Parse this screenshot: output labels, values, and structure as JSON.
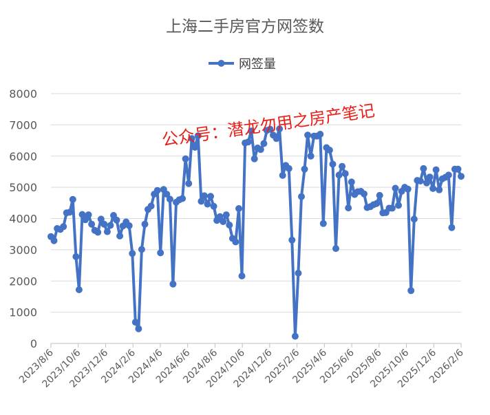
{
  "chart_data": {
    "type": "line",
    "title": "上海二手房官方网签数",
    "watermark": "公众号：潜龙勿用之房产笔记",
    "xlabel": "",
    "ylabel": "",
    "ylim": [
      0,
      8000
    ],
    "y_ticks": [
      0,
      1000,
      2000,
      3000,
      4000,
      5000,
      6000,
      7000,
      8000
    ],
    "x_tick_labels": [
      "2023/8/6",
      "2023/10/6",
      "2023/12/6",
      "2024/2/6",
      "2024/4/6",
      "2024/6/6",
      "2024/8/6",
      "2024/10/6",
      "2024/12/6",
      "2025/2/6",
      "2025/4/6",
      "2025/6/6",
      "2025/8/6",
      "2025/10/6",
      "2025/12/6",
      "2026/2/6"
    ],
    "legend_position": "top",
    "grid": true,
    "series_color": "#4472C4",
    "series": [
      {
        "name": "网签量",
        "values": [
          3420,
          3290,
          3680,
          3650,
          3740,
          4180,
          4200,
          4610,
          2780,
          1720,
          4130,
          3960,
          4120,
          3820,
          3620,
          3560,
          3980,
          3820,
          3580,
          3780,
          4100,
          3950,
          3440,
          3760,
          3890,
          3770,
          2880,
          680,
          470,
          3010,
          3820,
          4290,
          4400,
          4780,
          4900,
          2900,
          4930,
          4780,
          4620,
          1900,
          4520,
          4600,
          4640,
          5910,
          5120,
          6560,
          6280,
          6650,
          4550,
          4730,
          4460,
          4710,
          4390,
          3940,
          4060,
          3900,
          4120,
          3790,
          3360,
          3250,
          4320,
          2160,
          6420,
          6450,
          6800,
          5910,
          6260,
          6210,
          6400,
          6820,
          6860,
          6670,
          6560,
          6870,
          5380,
          5700,
          5600,
          3310,
          230,
          2250,
          4700,
          5580,
          6670,
          6000,
          6640,
          6640,
          6700,
          3840,
          6270,
          6190,
          5740,
          3040,
          5390,
          5670,
          5440,
          4340,
          5170,
          4770,
          4860,
          4870,
          4790,
          4350,
          4380,
          4440,
          4480,
          4740,
          4180,
          4190,
          4330,
          4330,
          4970,
          4420,
          4870,
          5000,
          4940,
          1690,
          3980,
          5220,
          5200,
          5600,
          5140,
          5330,
          4960,
          5560,
          4920,
          5270,
          5320,
          5390,
          3710,
          5580,
          5580,
          5350
        ]
      }
    ]
  }
}
